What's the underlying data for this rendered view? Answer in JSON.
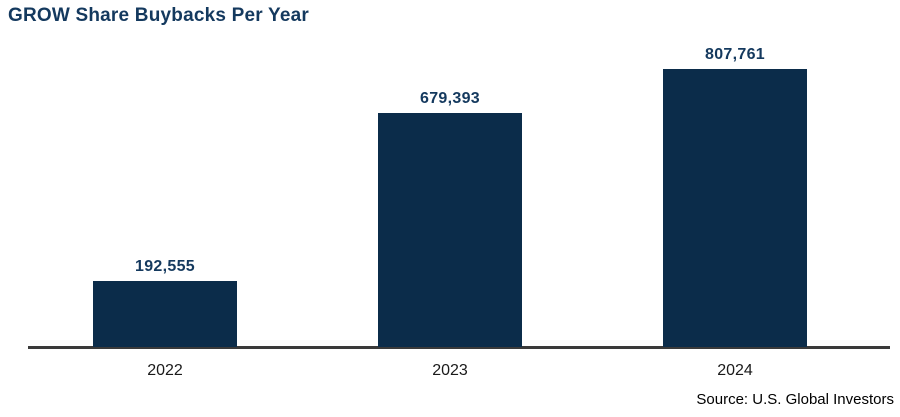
{
  "title": "GROW Share Buybacks Per Year",
  "source": "Source: U.S. Global Investors",
  "colors": {
    "background": "#ffffff",
    "bar": "#0b2c4a",
    "title_text": "#14395e",
    "value_label_text": "#14395e",
    "axis_line": "#3a3a3a",
    "year_label_text": "#1a1a1a",
    "source_text": "#000000"
  },
  "chart_data": {
    "type": "bar",
    "title": "GROW Share Buybacks Per Year",
    "categories": [
      "2022",
      "2023",
      "2024"
    ],
    "values": [
      192555,
      679393,
      807761
    ],
    "value_labels": [
      "192,555",
      "679,393",
      "807,761"
    ],
    "xlabel": "",
    "ylabel": "",
    "ylim": [
      0,
      830000
    ],
    "grid": false,
    "legend": "none",
    "bar_color": "#0b2c4a",
    "annotation": "Source: U.S. Global Investors"
  }
}
